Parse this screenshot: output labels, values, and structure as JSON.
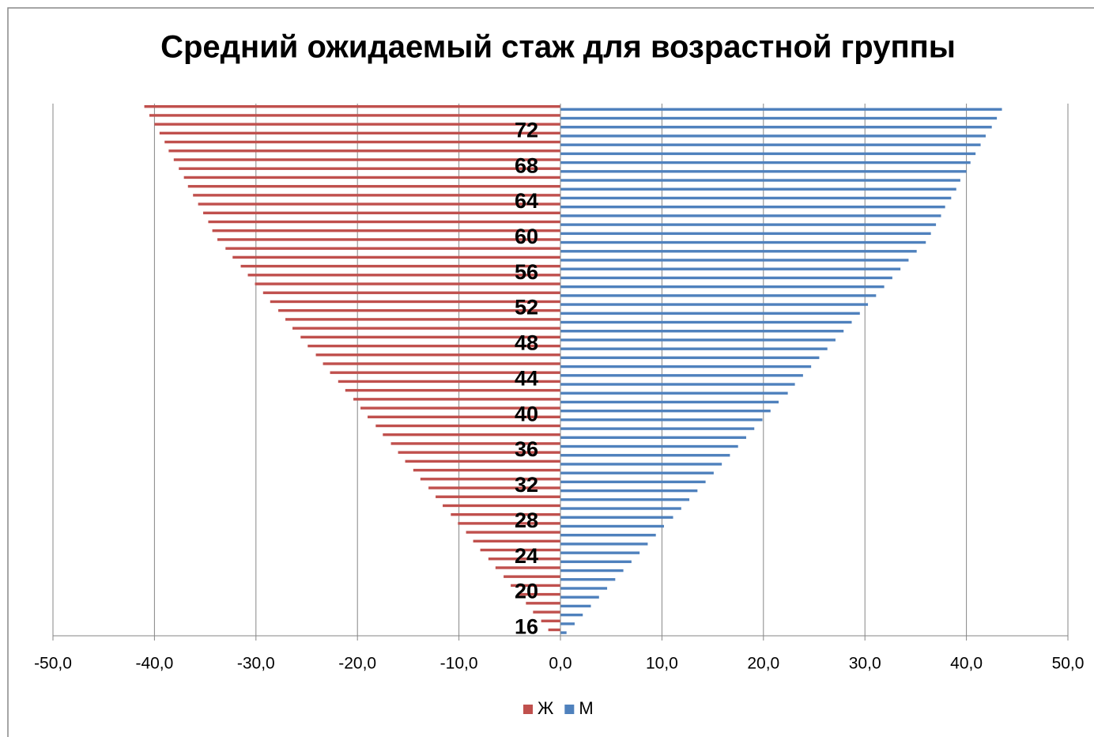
{
  "chart_data": {
    "type": "bar",
    "orientation": "horizontal",
    "title": "Средний ожидаемый стаж для возрастной группы",
    "categories": [
      "16",
      null,
      null,
      null,
      "20",
      null,
      null,
      null,
      "24",
      null,
      null,
      null,
      "28",
      null,
      null,
      null,
      "32",
      null,
      null,
      null,
      "36",
      null,
      null,
      null,
      "40",
      null,
      null,
      null,
      "44",
      null,
      null,
      null,
      "48",
      null,
      null,
      null,
      "52",
      null,
      null,
      null,
      "56",
      null,
      null,
      null,
      "60",
      null,
      null,
      null,
      "64",
      null,
      null,
      null,
      "68",
      null,
      null,
      null,
      "72",
      null,
      null,
      null
    ],
    "series": [
      {
        "name": "Ж",
        "color": "#c0504d",
        "values": [
          -1.2,
          -1.9,
          -2.7,
          -3.4,
          -4.2,
          -4.9,
          -5.6,
          -6.4,
          -7.1,
          -7.9,
          -8.6,
          -9.3,
          -10.1,
          -10.8,
          -11.6,
          -12.3,
          -13.0,
          -13.8,
          -14.5,
          -15.3,
          -16.0,
          -16.7,
          -17.5,
          -18.2,
          -19.0,
          -19.7,
          -20.4,
          -21.2,
          -21.9,
          -22.7,
          -23.4,
          -24.1,
          -24.9,
          -25.6,
          -26.4,
          -27.1,
          -27.8,
          -28.6,
          -29.3,
          -30.1,
          -30.8,
          -31.5,
          -32.3,
          -33.0,
          -33.8,
          -34.3,
          -34.7,
          -35.2,
          -35.7,
          -36.2,
          -36.7,
          -37.1,
          -37.6,
          -38.1,
          -38.6,
          -39.0,
          -39.5,
          -40.0,
          -40.5,
          -41.0
        ]
      },
      {
        "name": "М",
        "color": "#4f81bd",
        "values": [
          0.6,
          1.4,
          2.2,
          3.0,
          3.8,
          4.6,
          5.4,
          6.2,
          7.0,
          7.8,
          8.6,
          9.4,
          10.2,
          11.1,
          11.9,
          12.7,
          13.5,
          14.3,
          15.1,
          15.9,
          16.7,
          17.5,
          18.3,
          19.1,
          19.9,
          20.7,
          21.5,
          22.4,
          23.1,
          23.9,
          24.7,
          25.5,
          26.3,
          27.1,
          27.9,
          28.7,
          29.5,
          30.3,
          31.1,
          31.9,
          32.7,
          33.5,
          34.3,
          35.1,
          36.0,
          36.5,
          37.0,
          37.5,
          37.9,
          38.5,
          39.0,
          39.4,
          40.0,
          40.4,
          40.9,
          41.4,
          41.9,
          42.5,
          43.0,
          43.5
        ]
      }
    ],
    "xlim": [
      -50,
      50
    ],
    "xticks": [
      {
        "value": -50,
        "label": "-50,0"
      },
      {
        "value": -40,
        "label": "-40,0"
      },
      {
        "value": -30,
        "label": "-30,0"
      },
      {
        "value": -20,
        "label": "-20,0"
      },
      {
        "value": -10,
        "label": "-10,0"
      },
      {
        "value": 0,
        "label": "0,0"
      },
      {
        "value": 10,
        "label": "10,0"
      },
      {
        "value": 20,
        "label": "20,0"
      },
      {
        "value": 30,
        "label": "30,0"
      },
      {
        "value": 40,
        "label": "40,0"
      },
      {
        "value": 50,
        "label": "50,0"
      }
    ],
    "grid": true,
    "legend": "bottom"
  }
}
